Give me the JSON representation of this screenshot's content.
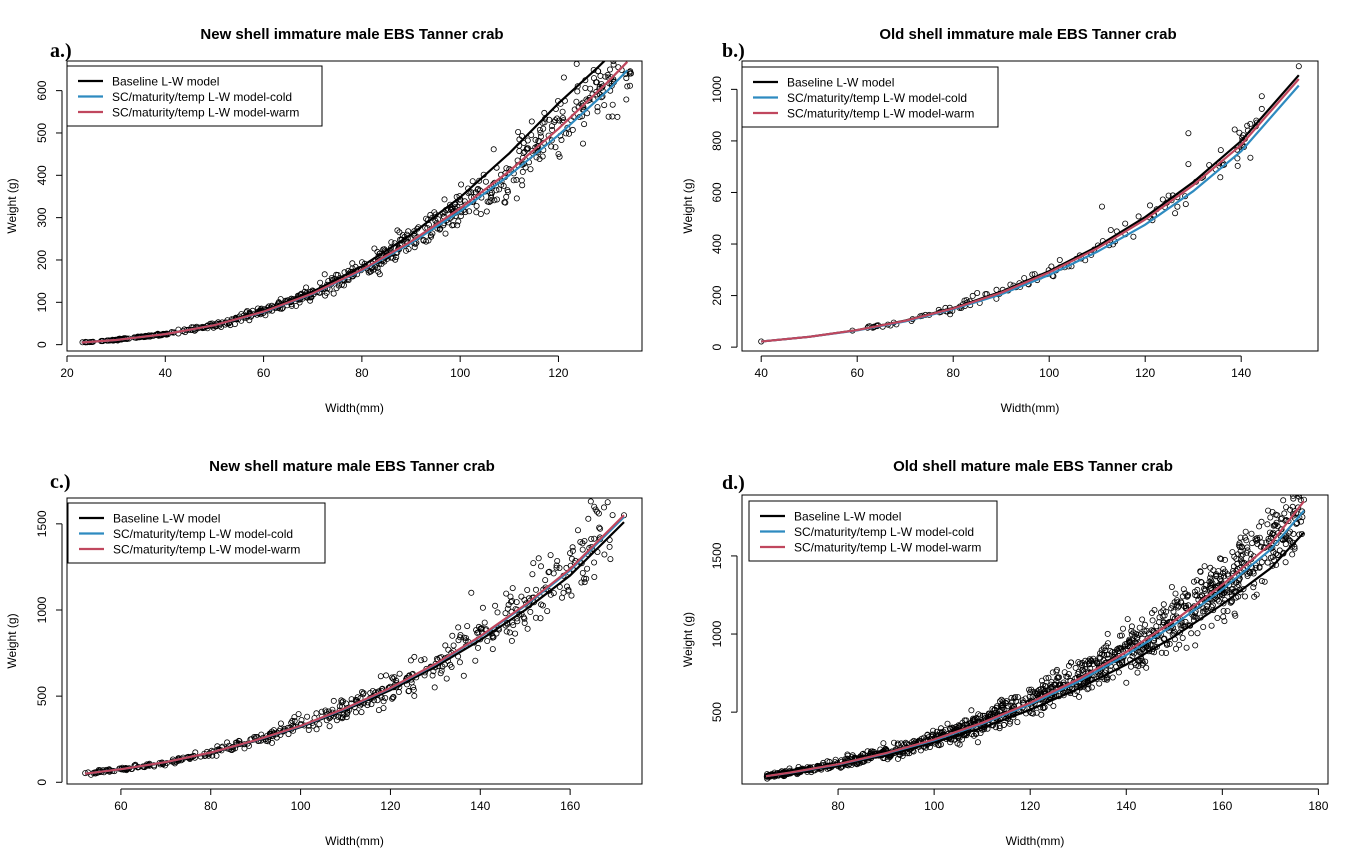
{
  "colors": {
    "baseline": "#000000",
    "cold": "#2E8BC0",
    "warm": "#C0475E",
    "points": "#000000"
  },
  "chart_data": [
    {
      "panel": "a.)",
      "title": "New shell immature male EBS Tanner crab",
      "type": "scatter",
      "xlabel": "Width(mm)",
      "ylabel": "Weight (g)",
      "xlim": [
        20,
        137
      ],
      "ylim": [
        -15,
        670
      ],
      "xticks": [
        20,
        40,
        60,
        80,
        100,
        120
      ],
      "yticks": [
        0,
        100,
        200,
        300,
        400,
        500,
        600
      ],
      "legend_position": "top-left",
      "grid": false,
      "series": [
        {
          "name": "Baseline L-W model",
          "type": "line",
          "color_key": "baseline",
          "x": [
            23,
            30,
            40,
            50,
            60,
            70,
            80,
            90,
            100,
            110,
            120,
            128,
            132
          ],
          "y": [
            5,
            11,
            25,
            47,
            80,
            125,
            185,
            260,
            348,
            452,
            570,
            655,
            700
          ]
        },
        {
          "name": "SC/maturity/temp L-W model-cold",
          "type": "line",
          "color_key": "cold",
          "x": [
            23,
            30,
            40,
            50,
            60,
            70,
            80,
            90,
            100,
            110,
            120,
            130,
            134
          ],
          "y": [
            5,
            11,
            25,
            46,
            77,
            120,
            175,
            240,
            315,
            400,
            495,
            600,
            648
          ]
        },
        {
          "name": "SC/maturity/temp L-W model-warm",
          "type": "line",
          "color_key": "warm",
          "x": [
            23,
            30,
            40,
            50,
            60,
            70,
            80,
            90,
            100,
            110,
            120,
            130,
            134
          ],
          "y": [
            5,
            11,
            25,
            46,
            78,
            121,
            177,
            244,
            322,
            410,
            510,
            620,
            668
          ]
        }
      ],
      "points": {
        "x_range": [
          23,
          135
        ],
        "count": 700,
        "relative_scatter": 0.07,
        "outliers": [
          [
            134,
            610
          ],
          [
            132,
            538
          ],
          [
            120,
            450
          ],
          [
            129,
            600
          ],
          [
            125,
            475
          ]
        ]
      }
    },
    {
      "panel": "b.)",
      "title": "Old shell immature male EBS Tanner crab",
      "type": "scatter",
      "xlabel": "Width(mm)",
      "ylabel": "Weight (g)",
      "xlim": [
        36,
        156
      ],
      "ylim": [
        -15,
        1110
      ],
      "xticks": [
        40,
        60,
        80,
        100,
        120,
        140
      ],
      "yticks": [
        0,
        200,
        400,
        600,
        800,
        1000
      ],
      "legend_position": "top-left",
      "grid": false,
      "series": [
        {
          "name": "Baseline L-W model",
          "type": "line",
          "color_key": "baseline",
          "x": [
            40,
            50,
            60,
            70,
            80,
            90,
            100,
            110,
            120,
            130,
            140,
            152
          ],
          "y": [
            22,
            40,
            66,
            103,
            152,
            215,
            295,
            390,
            505,
            640,
            800,
            1055
          ]
        },
        {
          "name": "SC/maturity/temp L-W model-cold",
          "type": "line",
          "color_key": "cold",
          "x": [
            40,
            50,
            60,
            70,
            80,
            90,
            100,
            110,
            120,
            130,
            140,
            152
          ],
          "y": [
            22,
            40,
            65,
            100,
            147,
            205,
            280,
            370,
            475,
            605,
            760,
            1015
          ]
        },
        {
          "name": "SC/maturity/temp L-W model-warm",
          "type": "line",
          "color_key": "warm",
          "x": [
            40,
            50,
            60,
            70,
            80,
            90,
            100,
            110,
            120,
            130,
            140,
            152
          ],
          "y": [
            22,
            40,
            66,
            102,
            150,
            211,
            290,
            383,
            495,
            628,
            785,
            1040
          ]
        }
      ],
      "points": {
        "x_range": [
          60,
          145
        ],
        "count": 140,
        "relative_scatter": 0.05,
        "outliers": [
          [
            40,
            22
          ],
          [
            59,
            64
          ],
          [
            75,
            125
          ],
          [
            111,
            545
          ],
          [
            129,
            830
          ],
          [
            129,
            710
          ],
          [
            152,
            1090
          ],
          [
            121,
            550
          ],
          [
            85,
            210
          ]
        ]
      }
    },
    {
      "panel": "c.)",
      "title": "New shell mature male EBS Tanner crab",
      "type": "scatter",
      "xlabel": "Width(mm)",
      "ylabel": "Weight (g)",
      "xlim": [
        48,
        176
      ],
      "ylim": [
        -10,
        1650
      ],
      "xticks": [
        60,
        80,
        100,
        120,
        140,
        160
      ],
      "yticks": [
        0,
        500,
        1000,
        1500
      ],
      "legend_position": "top-left",
      "grid": false,
      "series": [
        {
          "name": "Baseline L-W model",
          "type": "line",
          "color_key": "baseline",
          "x": [
            52,
            60,
            70,
            80,
            90,
            100,
            110,
            120,
            130,
            140,
            150,
            160,
            172
          ],
          "y": [
            50,
            75,
            115,
            170,
            240,
            320,
            420,
            535,
            670,
            825,
            1000,
            1200,
            1510
          ]
        },
        {
          "name": "SC/maturity/temp L-W model-cold",
          "type": "line",
          "color_key": "cold",
          "x": [
            52,
            60,
            70,
            80,
            90,
            100,
            110,
            120,
            130,
            140,
            150,
            160,
            172
          ],
          "y": [
            50,
            76,
            117,
            172,
            243,
            325,
            427,
            545,
            683,
            843,
            1025,
            1230,
            1540
          ]
        },
        {
          "name": "SC/maturity/temp L-W model-warm",
          "type": "line",
          "color_key": "warm",
          "x": [
            52,
            60,
            70,
            80,
            90,
            100,
            110,
            120,
            130,
            140,
            150,
            160,
            172
          ],
          "y": [
            50,
            76,
            117,
            173,
            244,
            327,
            430,
            548,
            687,
            848,
            1030,
            1238,
            1550
          ]
        }
      ],
      "points": {
        "x_range": [
          52,
          170
        ],
        "count": 520,
        "relative_scatter": 0.08,
        "outliers": [
          [
            172,
            1550
          ],
          [
            166,
            1570
          ],
          [
            153,
            1300
          ],
          [
            160,
            1330
          ],
          [
            138,
            1100
          ]
        ]
      }
    },
    {
      "panel": "d.)",
      "title": "Old shell mature male EBS Tanner crab",
      "type": "scatter",
      "xlabel": "Width(mm)",
      "ylabel": "Weight (g)",
      "xlim": [
        60,
        182
      ],
      "ylim": [
        40,
        1890
      ],
      "xticks": [
        80,
        100,
        120,
        140,
        160,
        180
      ],
      "yticks": [
        500,
        1000,
        1500
      ],
      "legend_position": "top-left",
      "grid": false,
      "series": [
        {
          "name": "Baseline L-W model",
          "type": "line",
          "color_key": "baseline",
          "x": [
            65,
            70,
            80,
            90,
            100,
            110,
            120,
            130,
            140,
            150,
            160,
            170,
            177
          ],
          "y": [
            90,
            110,
            160,
            225,
            305,
            400,
            515,
            650,
            805,
            985,
            1190,
            1420,
            1650
          ]
        },
        {
          "name": "SC/maturity/temp L-W model-cold",
          "type": "line",
          "color_key": "cold",
          "x": [
            65,
            70,
            80,
            90,
            100,
            110,
            120,
            130,
            140,
            150,
            160,
            170,
            177
          ],
          "y": [
            90,
            112,
            165,
            235,
            320,
            425,
            550,
            695,
            865,
            1060,
            1285,
            1540,
            1790
          ]
        },
        {
          "name": "SC/maturity/temp L-W model-warm",
          "type": "line",
          "color_key": "warm",
          "x": [
            65,
            70,
            80,
            90,
            100,
            110,
            120,
            130,
            140,
            150,
            160,
            170,
            177
          ],
          "y": [
            90,
            113,
            167,
            238,
            325,
            432,
            560,
            710,
            885,
            1085,
            1315,
            1575,
            1850
          ]
        }
      ],
      "points": {
        "x_range": [
          65,
          177
        ],
        "count": 1400,
        "relative_scatter": 0.08,
        "outliers": [
          [
            177,
            1860
          ],
          [
            165,
            1600
          ],
          [
            168,
            1560
          ],
          [
            160,
            1320
          ]
        ]
      }
    }
  ]
}
